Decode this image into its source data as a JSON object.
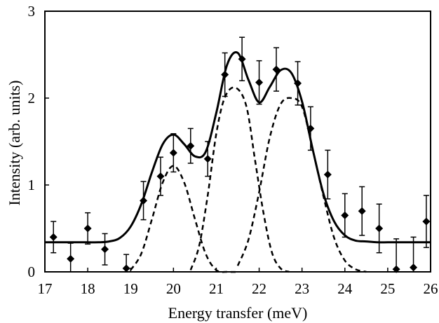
{
  "chart_data": {
    "type": "scatter",
    "xlabel": "Energy transfer (meV)",
    "ylabel": "Intensity (arb. units)",
    "xlim": [
      17,
      26
    ],
    "ylim": [
      0,
      3
    ],
    "x_ticks": [
      "17",
      "18",
      "19",
      "20",
      "21",
      "22",
      "23",
      "24",
      "25",
      "26"
    ],
    "y_ticks": [
      "0",
      "1",
      "2",
      "3"
    ],
    "grid": false,
    "legend": "none",
    "colors": {
      "marks": "#000000",
      "background": "#ffffff"
    },
    "series": [
      {
        "style": "points-with-errorbars",
        "points": [
          {
            "x": 17.2,
            "y": 0.4,
            "err": 0.18
          },
          {
            "x": 17.6,
            "y": 0.15,
            "err": 0.18
          },
          {
            "x": 18.0,
            "y": 0.5,
            "err": 0.18
          },
          {
            "x": 18.4,
            "y": 0.26,
            "err": 0.18
          },
          {
            "x": 18.9,
            "y": 0.04,
            "err": 0.16
          },
          {
            "x": 19.3,
            "y": 0.82,
            "err": 0.22
          },
          {
            "x": 19.7,
            "y": 1.1,
            "err": 0.22
          },
          {
            "x": 20.0,
            "y": 1.37,
            "err": 0.22
          },
          {
            "x": 20.4,
            "y": 1.45,
            "err": 0.2
          },
          {
            "x": 20.8,
            "y": 1.3,
            "err": 0.2
          },
          {
            "x": 21.2,
            "y": 2.27,
            "err": 0.25
          },
          {
            "x": 21.6,
            "y": 2.45,
            "err": 0.25
          },
          {
            "x": 22.0,
            "y": 2.18,
            "err": 0.25
          },
          {
            "x": 22.4,
            "y": 2.33,
            "err": 0.25
          },
          {
            "x": 22.9,
            "y": 2.17,
            "err": 0.25
          },
          {
            "x": 23.2,
            "y": 1.65,
            "err": 0.25
          },
          {
            "x": 23.6,
            "y": 1.12,
            "err": 0.28
          },
          {
            "x": 24.0,
            "y": 0.65,
            "err": 0.25
          },
          {
            "x": 24.4,
            "y": 0.7,
            "err": 0.28
          },
          {
            "x": 24.8,
            "y": 0.5,
            "err": 0.28
          },
          {
            "x": 25.2,
            "y": 0.03,
            "err": 0.35
          },
          {
            "x": 25.6,
            "y": 0.05,
            "err": 0.35
          },
          {
            "x": 25.9,
            "y": 0.58,
            "err": 0.3
          }
        ]
      },
      {
        "style": "solid-line",
        "model": "sum-of-gaussians",
        "baseline": 0.34,
        "x": [
          17.0,
          17.25,
          17.5,
          17.75,
          18.0,
          18.25,
          18.5,
          18.75,
          19.0,
          19.25,
          19.5,
          19.75,
          20.0,
          20.25,
          20.5,
          20.75,
          21.0,
          21.25,
          21.5,
          21.75,
          22.0,
          22.25,
          22.5,
          22.75,
          23.0,
          23.25,
          23.5,
          23.75,
          24.0,
          24.25,
          24.5,
          24.75,
          25.0,
          25.25,
          25.5,
          25.75,
          26.0
        ],
        "y": [
          0.34,
          0.34,
          0.34,
          0.34,
          0.34,
          0.34,
          0.35,
          0.39,
          0.52,
          0.78,
          1.15,
          1.47,
          1.58,
          1.47,
          1.33,
          1.38,
          1.83,
          2.38,
          2.52,
          2.21,
          1.95,
          2.13,
          2.32,
          2.29,
          1.96,
          1.41,
          0.9,
          0.58,
          0.42,
          0.36,
          0.35,
          0.34,
          0.34,
          0.34,
          0.34,
          0.34,
          0.34
        ]
      },
      {
        "style": "dashed-line",
        "model": "gaussian",
        "center": 20.0,
        "x": [
          19.0,
          19.25,
          19.5,
          19.75,
          20.0,
          20.25,
          20.5,
          20.75,
          21.0,
          21.25,
          21.5
        ],
        "y": [
          0.02,
          0.21,
          0.61,
          1.03,
          1.22,
          1.03,
          0.61,
          0.21,
          0.02,
          0.0,
          0.0
        ]
      },
      {
        "style": "dashed-line",
        "model": "gaussian",
        "center": 21.45,
        "x": [
          20.4,
          20.6,
          20.8,
          21.0,
          21.2,
          21.45,
          21.7,
          21.9,
          22.1,
          22.3,
          22.5,
          22.7
        ],
        "y": [
          0.02,
          0.3,
          0.88,
          1.59,
          2.01,
          2.12,
          1.91,
          1.3,
          0.68,
          0.22,
          0.04,
          0.0
        ]
      },
      {
        "style": "dashed-line",
        "model": "gaussian",
        "center": 22.75,
        "x": [
          21.5,
          21.75,
          22.0,
          22.25,
          22.5,
          22.75,
          23.0,
          23.25,
          23.5,
          23.75,
          24.0,
          24.25,
          24.5
        ],
        "y": [
          0.07,
          0.37,
          0.92,
          1.55,
          1.93,
          2.0,
          1.9,
          1.41,
          0.87,
          0.39,
          0.13,
          0.03,
          0.0
        ]
      }
    ]
  }
}
